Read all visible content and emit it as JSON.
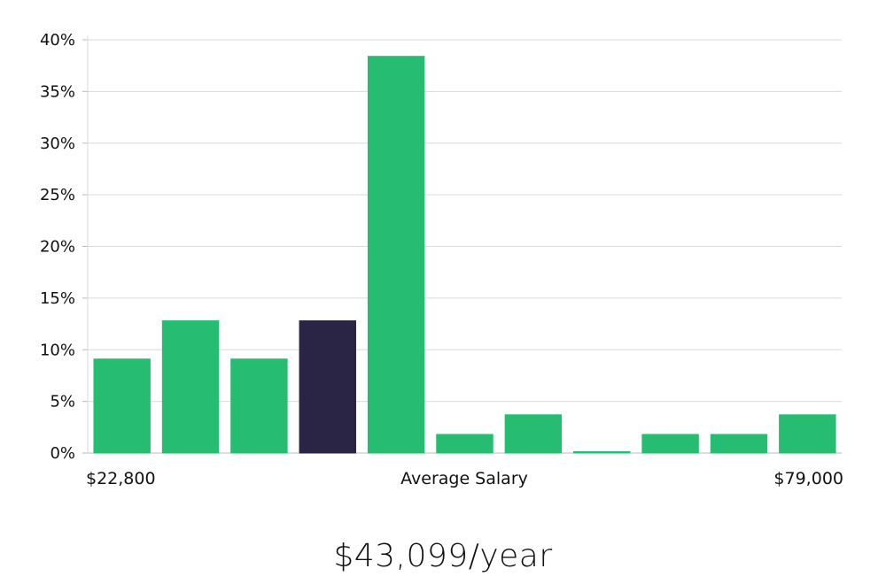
{
  "chart_data": {
    "type": "bar",
    "categories": [
      "1",
      "2",
      "3",
      "4",
      "5",
      "6",
      "7",
      "8",
      "9",
      "10",
      "11"
    ],
    "values": [
      9.1,
      12.8,
      9.1,
      12.8,
      38.4,
      1.8,
      3.7,
      0.1,
      1.8,
      1.8,
      3.7
    ],
    "highlight_index": 3,
    "ylim": [
      0,
      40
    ],
    "yticks": [
      0,
      5,
      10,
      15,
      20,
      25,
      30,
      35,
      40
    ],
    "ytick_labels": [
      "0%",
      "5%",
      "10%",
      "15%",
      "20%",
      "25%",
      "30%",
      "35%",
      "40%"
    ],
    "x_labels": {
      "left": "$22,800",
      "center": "Average Salary",
      "right": "$79,000"
    },
    "grid": true,
    "colors": {
      "bar": "#26bd72",
      "highlight": "#2a2545",
      "grid": "#d9d9d9",
      "axis": "#bbbbbb",
      "text": "#111111"
    }
  },
  "salary_headline": "$43,099/year"
}
